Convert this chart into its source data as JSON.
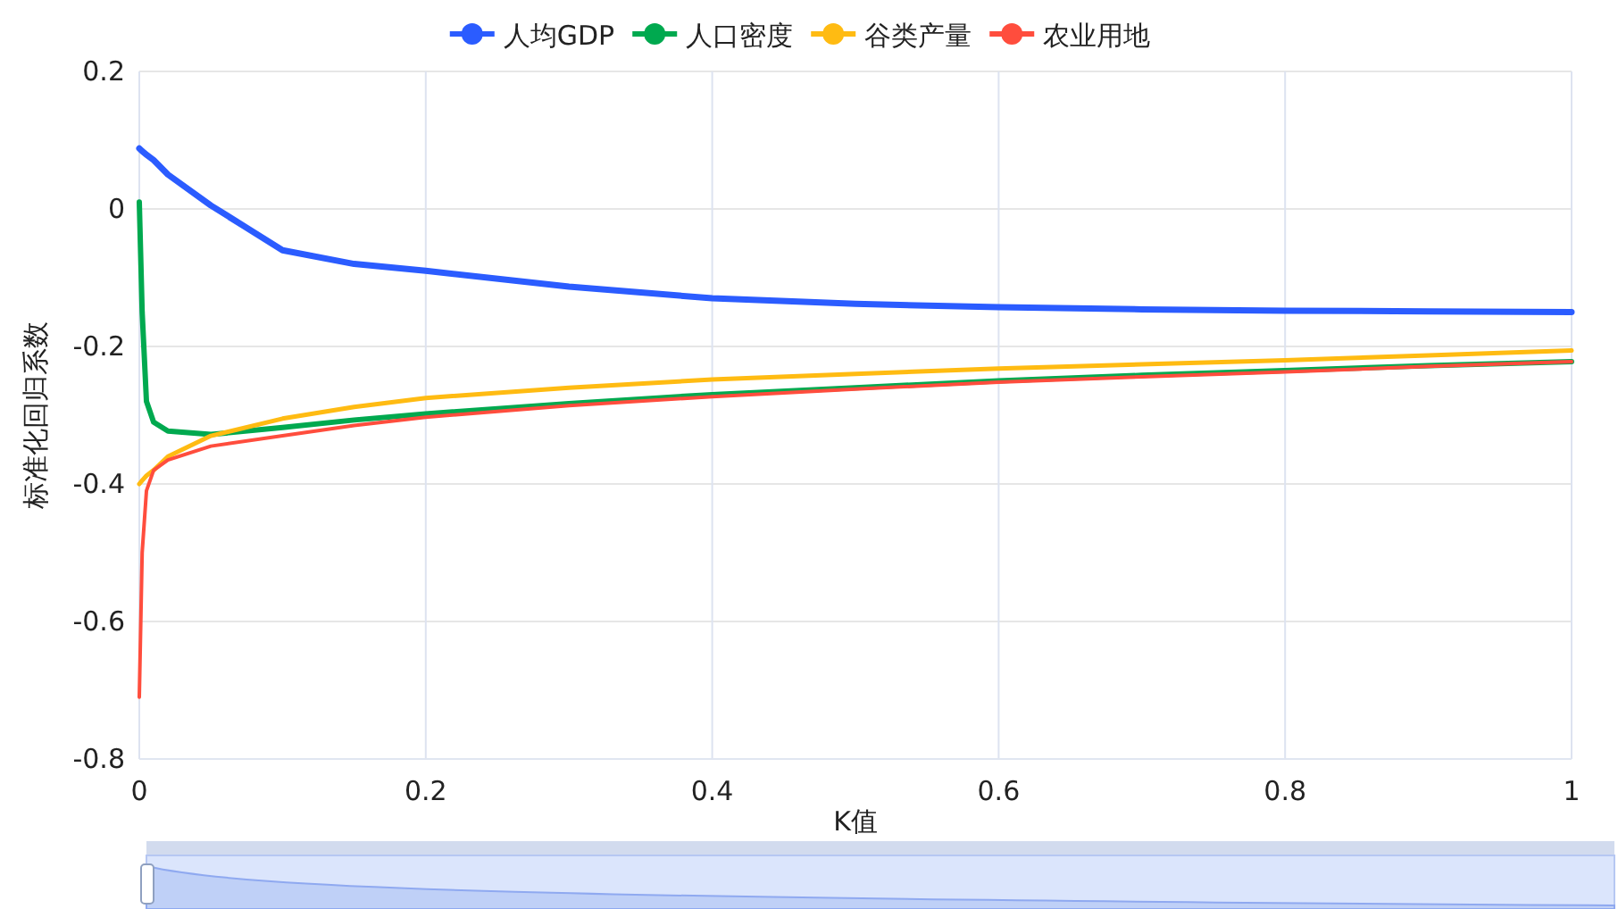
{
  "chart_data": {
    "type": "line",
    "xlabel": "K值",
    "ylabel": "标准化回归系数",
    "xlim": [
      0,
      1
    ],
    "ylim": [
      -0.8,
      0.2
    ],
    "xticks": [
      0,
      0.2,
      0.4,
      0.6,
      0.8,
      1
    ],
    "yticks": [
      -0.8,
      -0.6,
      -0.4,
      -0.2,
      0,
      0.2
    ],
    "grid": true,
    "legend": "top",
    "x": [
      0,
      0.002,
      0.005,
      0.01,
      0.02,
      0.05,
      0.1,
      0.15,
      0.2,
      0.3,
      0.4,
      0.5,
      0.6,
      0.7,
      0.8,
      0.9,
      1
    ],
    "series": [
      {
        "name": "人均GDP",
        "color": "#2b5cff",
        "values": [
          0.088,
          0.084,
          0.079,
          0.071,
          0.05,
          0.005,
          -0.06,
          -0.08,
          -0.09,
          -0.113,
          -0.13,
          -0.138,
          -0.143,
          -0.146,
          -0.148,
          -0.149,
          -0.15
        ]
      },
      {
        "name": "人口密度",
        "color": "#00a94f",
        "values": [
          0.01,
          -0.15,
          -0.28,
          -0.31,
          -0.323,
          -0.328,
          -0.318,
          -0.307,
          -0.298,
          -0.283,
          -0.27,
          -0.26,
          -0.25,
          -0.242,
          -0.235,
          -0.228,
          -0.222
        ]
      },
      {
        "name": "谷类产量",
        "color": "#ffbb12",
        "values": [
          -0.4,
          -0.395,
          -0.388,
          -0.38,
          -0.36,
          -0.33,
          -0.305,
          -0.288,
          -0.275,
          -0.26,
          -0.248,
          -0.24,
          -0.232,
          -0.226,
          -0.22,
          -0.213,
          -0.206
        ]
      },
      {
        "name": "农业用地",
        "color": "#ff4d3d",
        "values": [
          -0.71,
          -0.5,
          -0.41,
          -0.38,
          -0.365,
          -0.345,
          -0.33,
          -0.315,
          -0.303,
          -0.286,
          -0.273,
          -0.262,
          -0.252,
          -0.244,
          -0.237,
          -0.229,
          -0.222
        ]
      }
    ]
  }
}
